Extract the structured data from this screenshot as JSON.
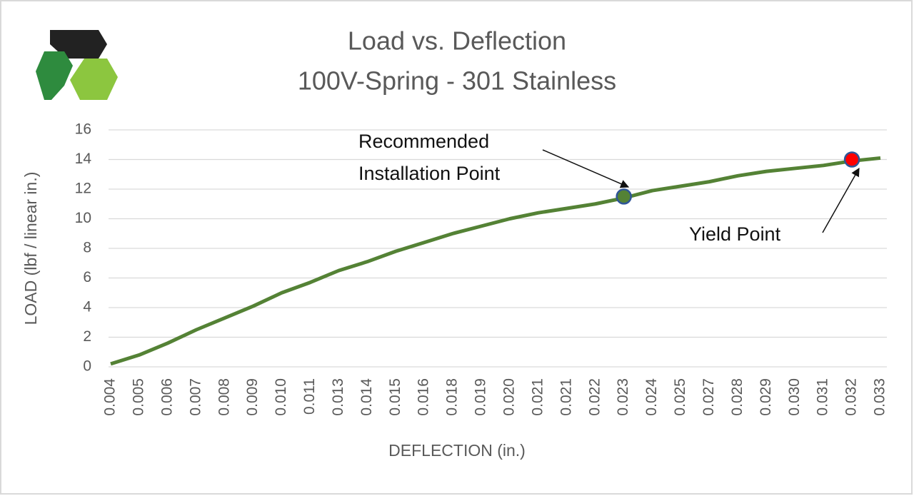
{
  "chart_data": {
    "type": "line",
    "title": [
      "Load vs. Deflection",
      "100V-Spring - 301 Stainless"
    ],
    "x_label": "DEFLECTION (in.)",
    "y_label": "LOAD (lbf / linear in.)",
    "categories": [
      "0.004",
      "0.005",
      "0.006",
      "0.007",
      "0.008",
      "0.009",
      "0.010",
      "0.011",
      "0.013",
      "0.014",
      "0.015",
      "0.016",
      "0.018",
      "0.019",
      "0.020",
      "0.021",
      "0.021",
      "0.022",
      "0.023",
      "0.024",
      "0.025",
      "0.027",
      "0.028",
      "0.029",
      "0.030",
      "0.031",
      "0.032",
      "0.033"
    ],
    "values": [
      0.2,
      0.8,
      1.6,
      2.5,
      3.3,
      4.1,
      5.0,
      5.7,
      6.5,
      7.1,
      7.8,
      8.4,
      9.0,
      9.5,
      10.0,
      10.4,
      10.7,
      11.0,
      11.4,
      11.9,
      12.2,
      12.5,
      12.9,
      13.2,
      13.4,
      13.6,
      13.9,
      14.1
    ],
    "color": "#548235",
    "ylim": [
      0,
      16
    ],
    "yticks": [
      0,
      2,
      4,
      6,
      8,
      10,
      12,
      14,
      16
    ],
    "grid": true,
    "annotations": [
      {
        "text": [
          "Recommended",
          "Installation Point"
        ],
        "category": "0.023",
        "value": 11.5,
        "color": "#548235"
      },
      {
        "text": [
          "Yield Point"
        ],
        "category": "0.032",
        "value": 14.0,
        "color": "#ff0000"
      }
    ]
  }
}
